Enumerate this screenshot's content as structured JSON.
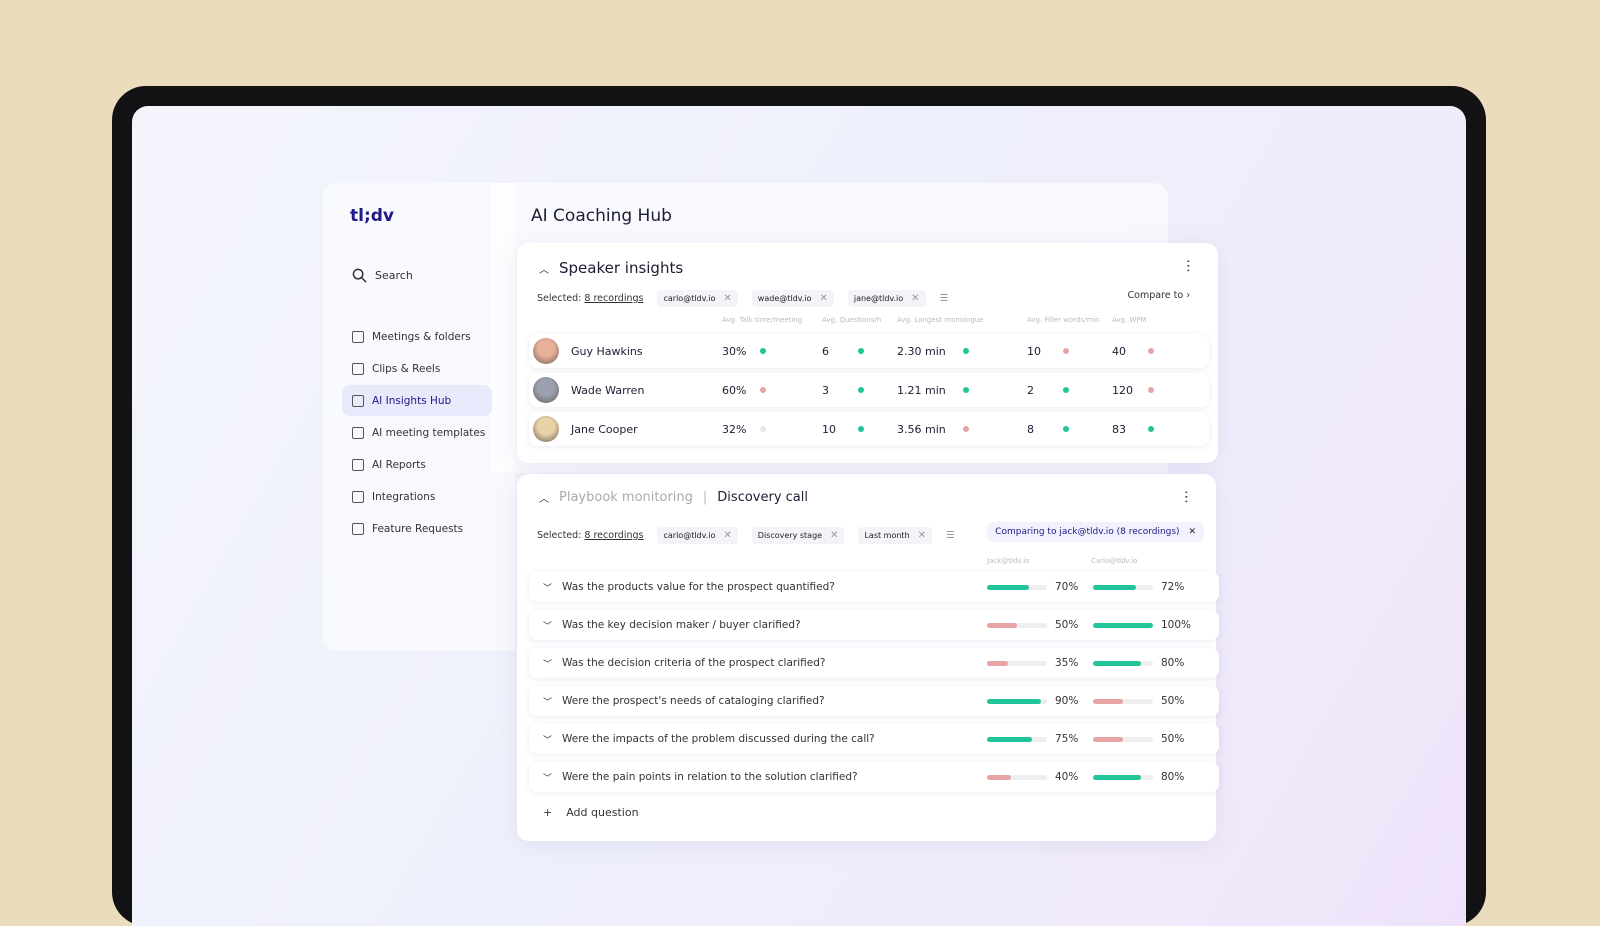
{
  "logo": "tl;dv",
  "search": {
    "label": "Search"
  },
  "nav": [
    {
      "label": "Meetings & folders",
      "icon": "video-icon"
    },
    {
      "label": "Clips & Reels",
      "icon": "clapper-icon"
    },
    {
      "label": "AI Insights Hub",
      "icon": "chart-icon",
      "active": true
    },
    {
      "label": "AI meeting templates",
      "icon": "tag-icon"
    },
    {
      "label": "AI Reports",
      "icon": "report-icon"
    },
    {
      "label": "Integrations",
      "icon": "grid-icon"
    },
    {
      "label": "Feature Requests",
      "icon": "bulb-icon"
    }
  ],
  "page_title": "AI Coaching Hub",
  "speaker": {
    "title": "Speaker insights",
    "selected_label": "Selected:",
    "recordings": "8 recordings",
    "chips": [
      "carlo@tldv.io",
      "wade@tldv.io",
      "jane@tldv.io"
    ],
    "compare": "Compare to",
    "columns": [
      "Avg. Talk time/meeting",
      "Avg. Questions/h",
      "Avg. Longest monologue",
      "Avg. Filler words/min",
      "Avg. WPM"
    ],
    "rows": [
      {
        "name": "Guy Hawkins",
        "values": [
          "30%",
          "6",
          "2.30 min",
          "10",
          "40"
        ],
        "status": [
          "good",
          "good",
          "good",
          "bad",
          "bad"
        ]
      },
      {
        "name": "Wade Warren",
        "values": [
          "60%",
          "3",
          "1.21 min",
          "2",
          "120"
        ],
        "status": [
          "bad",
          "good",
          "good",
          "good",
          "bad"
        ]
      },
      {
        "name": "Jane Cooper",
        "values": [
          "32%",
          "10",
          "3.56 min",
          "8",
          "83"
        ],
        "status": [
          "neutral",
          "good",
          "bad",
          "good",
          "good"
        ]
      }
    ]
  },
  "playbook": {
    "title_muted": "Playbook monitoring",
    "separator": "|",
    "title": "Discovery call",
    "selected_label": "Selected:",
    "recordings": "8 recordings",
    "chips": [
      "carlo@tldv.io",
      "Discovery stage",
      "Last month"
    ],
    "comparing": "Comparing to jack@tldv.io (8 recordings)",
    "columns": [
      "Jack@tldv.io",
      "Carlo@tldv.io"
    ],
    "questions": [
      {
        "text": "Was the products value for the prospect quantified?",
        "a": 70,
        "b": 72
      },
      {
        "text": "Was the key decision maker / buyer clarified?",
        "a": 50,
        "b": 100
      },
      {
        "text": "Was the decision criteria of the prospect clarified?",
        "a": 35,
        "b": 80
      },
      {
        "text": "Were the prospect's needs of cataloging clarified?",
        "a": 90,
        "b": 50
      },
      {
        "text": "Were the impacts of the problem discussed during the call?",
        "a": 75,
        "b": 50
      },
      {
        "text": "Were the pain points in relation to the solution clarified?",
        "a": 40,
        "b": 80
      }
    ],
    "add_question": "Add question"
  },
  "colors": {
    "good": "#22c49a",
    "bad": "#e8a4a4",
    "neutral": "#e6e6ea",
    "brand": "#1e1a8a"
  }
}
